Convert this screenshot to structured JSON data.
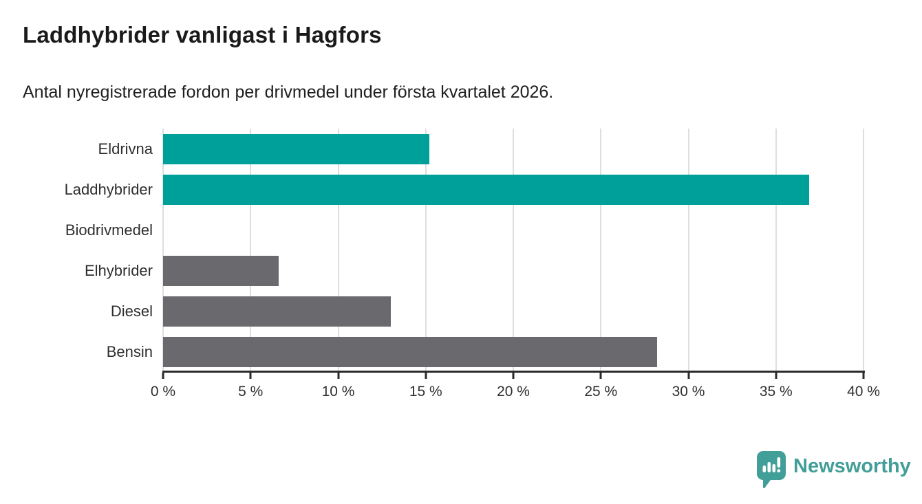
{
  "header": {
    "title": "Laddhybrider vanligast i Hagfors",
    "subtitle": "Antal nyregistrerade fordon per drivmedel under första kvartalet 2026."
  },
  "chart_data": {
    "type": "bar",
    "orientation": "horizontal",
    "title": "Laddhybrider vanligast i Hagfors",
    "subtitle": "Antal nyregistrerade fordon per drivmedel under första kvartalet 2026.",
    "categories": [
      "Eldrivna",
      "Laddhybrider",
      "Biodrivmedel",
      "Elhybrider",
      "Diesel",
      "Bensin"
    ],
    "values": [
      15.2,
      36.9,
      0,
      6.6,
      13.0,
      28.2
    ],
    "unit": "%",
    "xlabel": "",
    "ylabel": "",
    "xlim": [
      0,
      40
    ],
    "xticks": [
      0,
      5,
      10,
      15,
      20,
      25,
      30,
      35,
      40
    ],
    "xtick_labels": [
      "0 %",
      "5 %",
      "10 %",
      "15 %",
      "20 %",
      "25 %",
      "30 %",
      "35 %",
      "40 %"
    ],
    "grid": "vertical-only",
    "legend": "none",
    "bar_colors": [
      "#00a09a",
      "#00a09a",
      "#00a09a",
      "#6a6a6e",
      "#6a6a6e",
      "#6a6a6e"
    ],
    "colors": {
      "highlight": "#00a09a",
      "default": "#6a6a6e",
      "gridline": "#dedede",
      "axis": "#2b2b2b"
    }
  },
  "footer": {
    "brand": "Newsworthy",
    "brand_color": "#429e99",
    "logo_icon": "speech-bubble-bar-chart-exclamation"
  }
}
